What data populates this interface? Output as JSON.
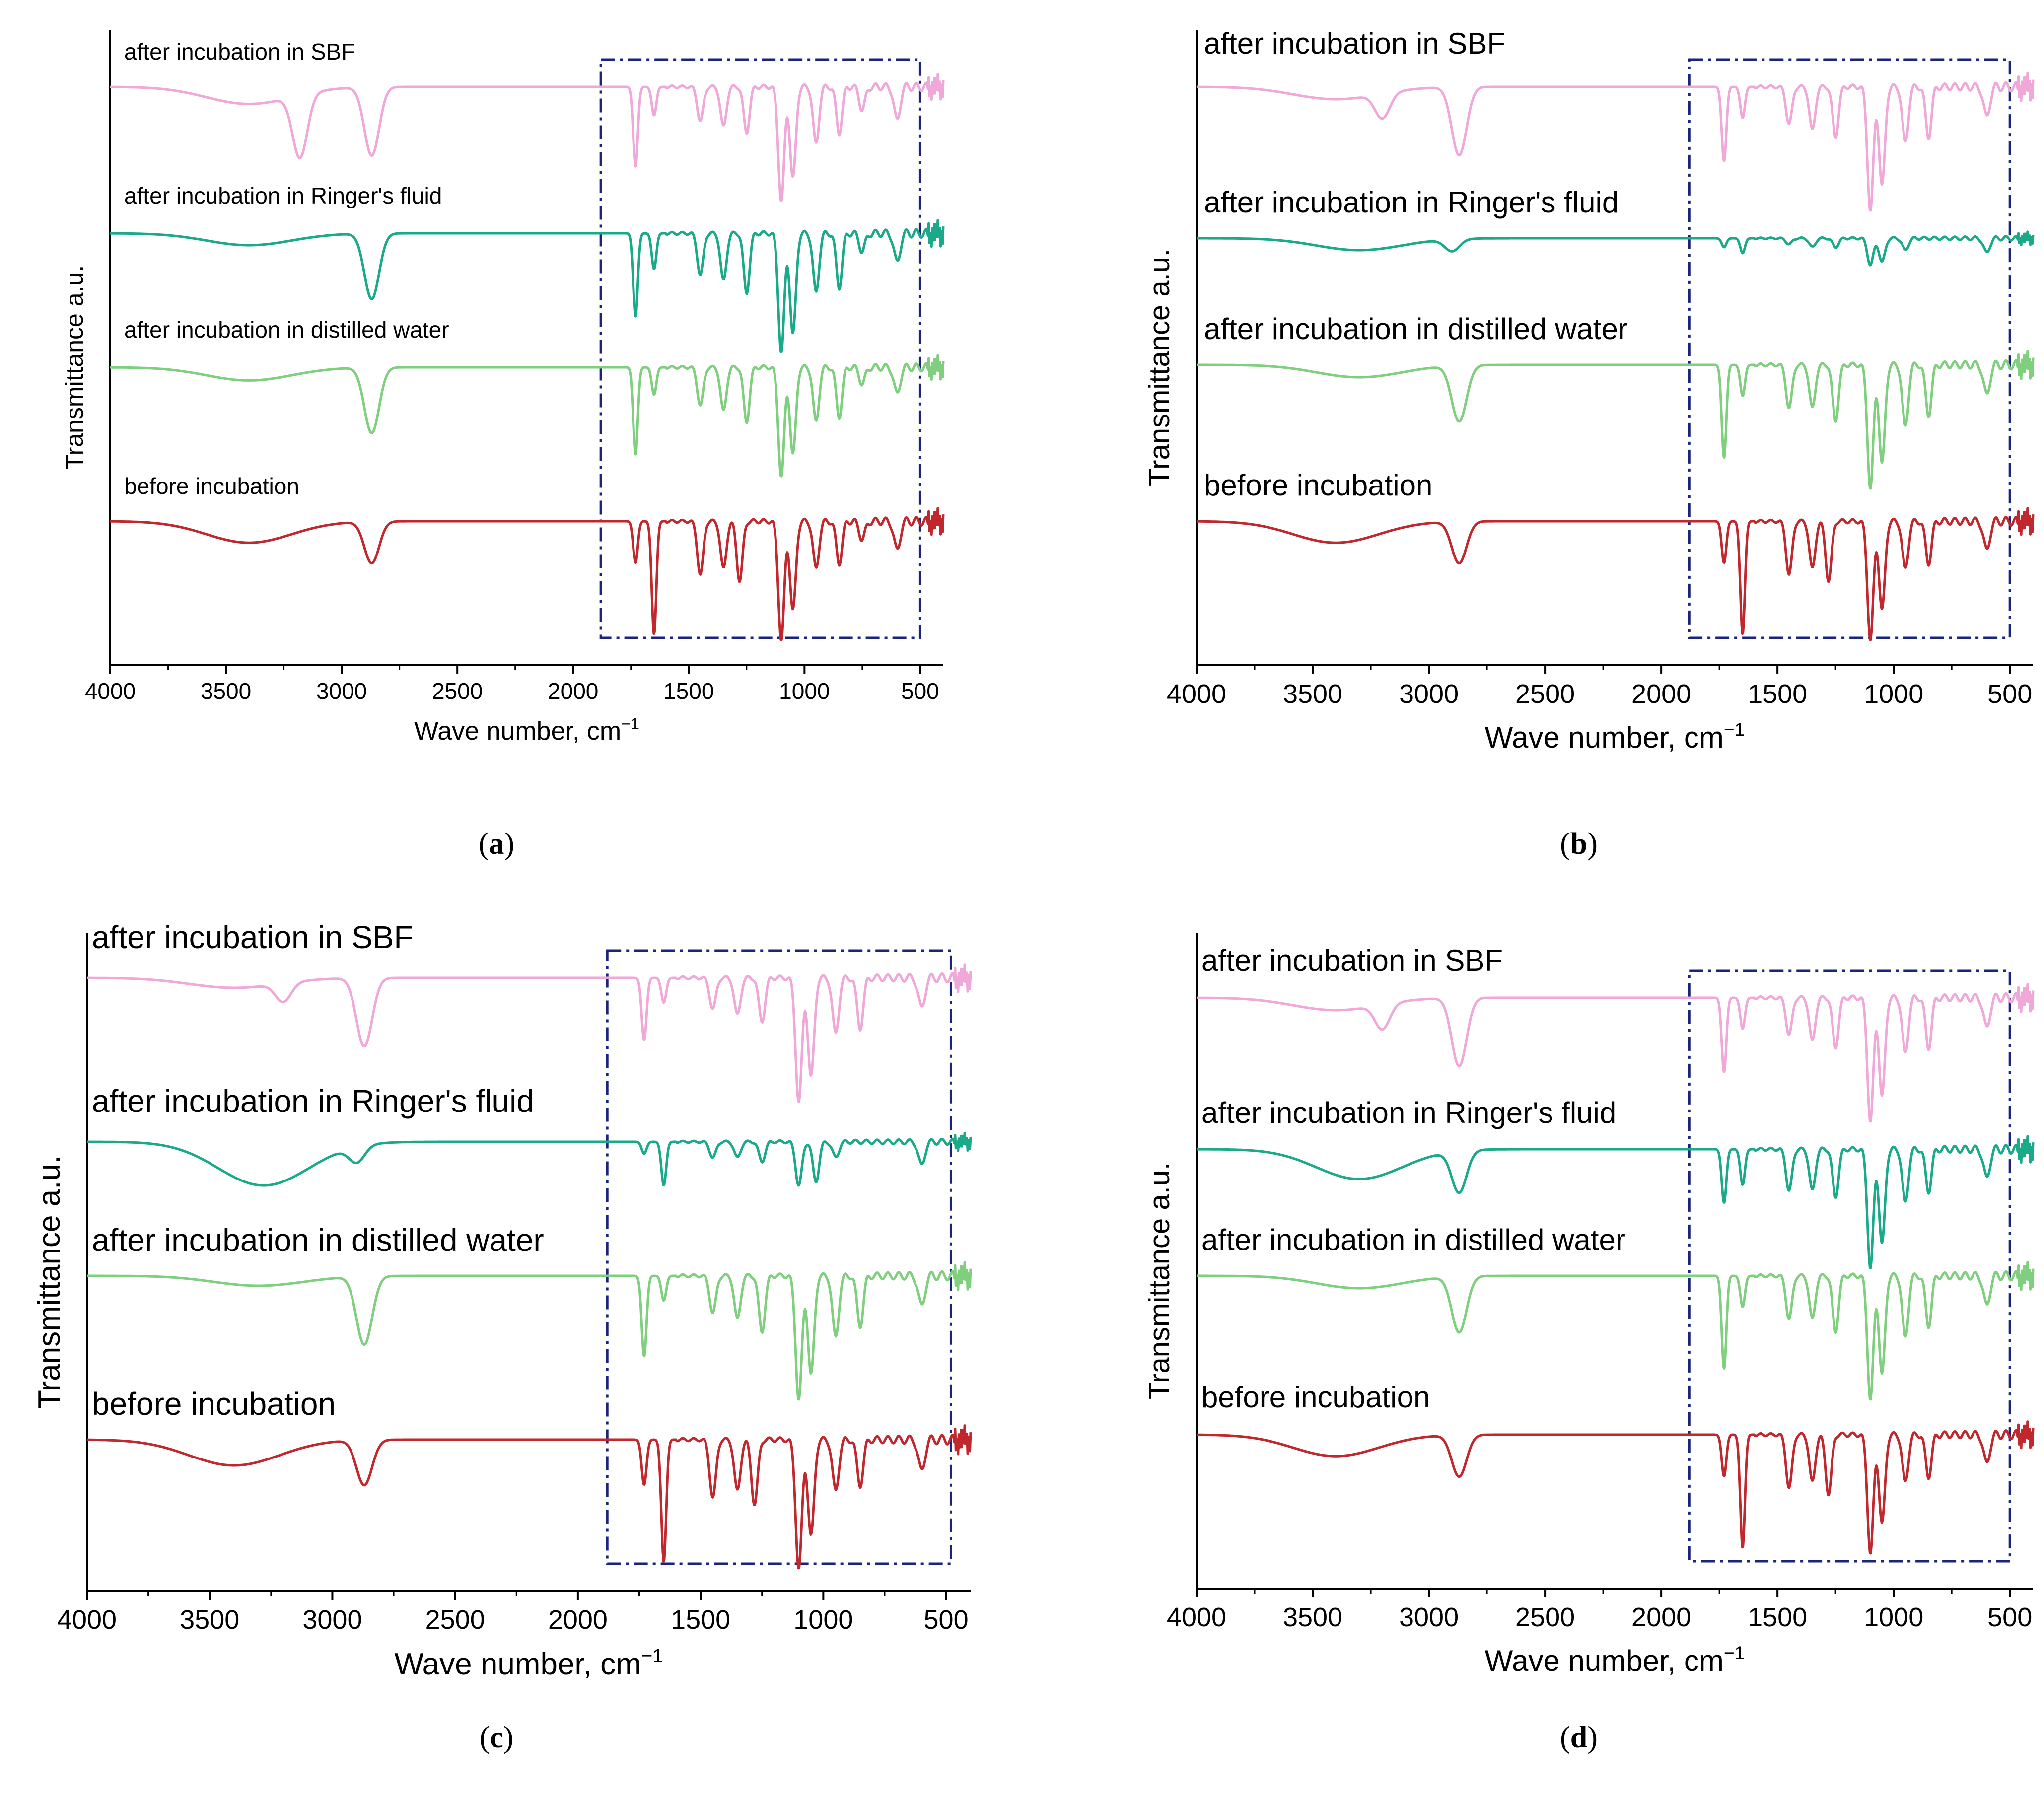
{
  "figure": {
    "panels_labels": [
      "a",
      "b",
      "c",
      "d"
    ]
  },
  "chart_data": [
    {
      "id": "a",
      "type": "line",
      "panel_label": "a",
      "xlabel": "Wave number, cm",
      "xlabel_superscript": "−1",
      "ylabel": "Transmittance a.u.",
      "xlim": [
        4000,
        400
      ],
      "x_ticks": [
        4000,
        3500,
        3000,
        2500,
        2000,
        1500,
        1000,
        500
      ],
      "x_tick_labels": [
        "4000",
        "3500",
        "3000",
        "2500",
        "2000",
        "1500",
        "1000",
        "500"
      ],
      "highlight_box": {
        "x_range": [
          1880,
          500
        ],
        "style": "dash-dot",
        "color": "#1a237e"
      },
      "series": [
        {
          "name": "after incubation in SBF",
          "color": "#f0a8d8",
          "peaks": [
            [
              3180,
              0.55
            ],
            [
              2870,
              0.6
            ],
            [
              1730,
              0.7
            ],
            [
              1650,
              0.25
            ],
            [
              1450,
              0.3
            ],
            [
              1350,
              0.35
            ],
            [
              1250,
              0.4
            ],
            [
              1100,
              1.0
            ],
            [
              1050,
              0.8
            ],
            [
              950,
              0.5
            ],
            [
              850,
              0.4
            ],
            [
              750,
              0.2
            ],
            [
              600,
              0.3
            ]
          ],
          "broad": [
            [
              3400,
              0.15
            ]
          ]
        },
        {
          "name": "after incubation in Ringer's fluid",
          "color": "#1aaa8a",
          "peaks": [
            [
              2870,
              0.55
            ],
            [
              1730,
              0.7
            ],
            [
              1650,
              0.3
            ],
            [
              1450,
              0.35
            ],
            [
              1350,
              0.4
            ],
            [
              1250,
              0.5
            ],
            [
              1100,
              1.0
            ],
            [
              1050,
              0.85
            ],
            [
              950,
              0.5
            ],
            [
              850,
              0.45
            ],
            [
              750,
              0.15
            ],
            [
              600,
              0.25
            ]
          ],
          "broad": [
            [
              3400,
              0.1
            ]
          ]
        },
        {
          "name": "after incubation in distilled water",
          "color": "#7fcf7f",
          "peaks": [
            [
              2870,
              0.6
            ],
            [
              1730,
              0.8
            ],
            [
              1650,
              0.25
            ],
            [
              1450,
              0.35
            ],
            [
              1350,
              0.4
            ],
            [
              1250,
              0.5
            ],
            [
              1100,
              1.0
            ],
            [
              1050,
              0.8
            ],
            [
              950,
              0.5
            ],
            [
              850,
              0.45
            ],
            [
              750,
              0.15
            ],
            [
              600,
              0.25
            ]
          ],
          "broad": [
            [
              3400,
              0.12
            ]
          ]
        },
        {
          "name": "before incubation",
          "color": "#c0282d",
          "peaks": [
            [
              2870,
              0.35
            ],
            [
              1730,
              0.35
            ],
            [
              1650,
              0.95
            ],
            [
              1450,
              0.45
            ],
            [
              1350,
              0.4
            ],
            [
              1280,
              0.5
            ],
            [
              1100,
              1.0
            ],
            [
              1050,
              0.75
            ],
            [
              950,
              0.4
            ],
            [
              850,
              0.35
            ],
            [
              750,
              0.15
            ],
            [
              600,
              0.25
            ]
          ],
          "broad": [
            [
              3400,
              0.18
            ]
          ]
        }
      ]
    },
    {
      "id": "b",
      "type": "line",
      "panel_label": "b",
      "xlabel": "Wave number, cm",
      "xlabel_superscript": "−1",
      "ylabel": "Transmittance a.u.",
      "xlim": [
        4000,
        400
      ],
      "x_ticks": [
        4000,
        3500,
        3000,
        2500,
        2000,
        1500,
        1000,
        500
      ],
      "x_tick_labels": [
        "4000",
        "3500",
        "3000",
        "2500",
        "2000",
        "1500",
        "1000",
        "500"
      ],
      "highlight_box": {
        "x_range": [
          1880,
          500
        ],
        "style": "dash-dot",
        "color": "#1a237e"
      },
      "series": [
        {
          "name": "after incubation in SBF",
          "color": "#f0a8d8",
          "peaks": [
            [
              3200,
              0.2
            ],
            [
              2870,
              0.55
            ],
            [
              1730,
              0.6
            ],
            [
              1650,
              0.25
            ],
            [
              1450,
              0.3
            ],
            [
              1350,
              0.35
            ],
            [
              1250,
              0.4
            ],
            [
              1100,
              1.0
            ],
            [
              1050,
              0.8
            ],
            [
              950,
              0.45
            ],
            [
              850,
              0.4
            ],
            [
              600,
              0.25
            ]
          ],
          "broad": [
            [
              3400,
              0.1
            ]
          ]
        },
        {
          "name": "after incubation in Ringer's fluid",
          "color": "#1aaa8a",
          "peaks": [
            [
              2900,
              0.2
            ],
            [
              1730,
              0.15
            ],
            [
              1650,
              0.25
            ],
            [
              1450,
              0.1
            ],
            [
              1350,
              0.15
            ],
            [
              1250,
              0.15
            ],
            [
              1100,
              0.45
            ],
            [
              1050,
              0.4
            ],
            [
              950,
              0.2
            ],
            [
              600,
              0.25
            ]
          ],
          "broad": [
            [
              3300,
              0.2
            ]
          ]
        },
        {
          "name": "after incubation in distilled water",
          "color": "#7fcf7f",
          "peaks": [
            [
              2870,
              0.45
            ],
            [
              1730,
              0.75
            ],
            [
              1650,
              0.25
            ],
            [
              1450,
              0.35
            ],
            [
              1350,
              0.35
            ],
            [
              1250,
              0.45
            ],
            [
              1100,
              1.0
            ],
            [
              1050,
              0.8
            ],
            [
              950,
              0.5
            ],
            [
              850,
              0.4
            ],
            [
              600,
              0.25
            ]
          ],
          "broad": [
            [
              3300,
              0.1
            ]
          ]
        },
        {
          "name": "before incubation",
          "color": "#c0282d",
          "peaks": [
            [
              2870,
              0.35
            ],
            [
              1730,
              0.35
            ],
            [
              1650,
              0.95
            ],
            [
              1450,
              0.45
            ],
            [
              1350,
              0.4
            ],
            [
              1280,
              0.5
            ],
            [
              1100,
              1.0
            ],
            [
              1050,
              0.75
            ],
            [
              950,
              0.4
            ],
            [
              850,
              0.35
            ],
            [
              600,
              0.25
            ]
          ],
          "broad": [
            [
              3400,
              0.18
            ]
          ]
        }
      ]
    },
    {
      "id": "c",
      "type": "line",
      "panel_label": "c",
      "xlabel": "Wave number, cm",
      "xlabel_superscript": "−1",
      "ylabel": "Transmittance a.u.",
      "xlim": [
        4000,
        400
      ],
      "x_ticks": [
        4000,
        3500,
        3000,
        2500,
        2000,
        1500,
        1000,
        500
      ],
      "x_tick_labels": [
        "4000",
        "3500",
        "3000",
        "2500",
        "2000",
        "1500",
        "1000",
        "500"
      ],
      "highlight_box": {
        "x_range": [
          1880,
          480
        ],
        "style": "dash-dot",
        "color": "#1a237e"
      },
      "series": [
        {
          "name": "after incubation in SBF",
          "color": "#f0a8d8",
          "peaks": [
            [
              3200,
              0.15
            ],
            [
              2870,
              0.55
            ],
            [
              1730,
              0.5
            ],
            [
              1650,
              0.2
            ],
            [
              1450,
              0.25
            ],
            [
              1350,
              0.3
            ],
            [
              1250,
              0.35
            ],
            [
              1100,
              1.0
            ],
            [
              1050,
              0.8
            ],
            [
              950,
              0.45
            ],
            [
              850,
              0.4
            ],
            [
              600,
              0.25
            ]
          ],
          "broad": [
            [
              3400,
              0.08
            ]
          ]
        },
        {
          "name": "after incubation in Ringer's fluid",
          "color": "#1aaa8a",
          "peaks": [
            [
              2900,
              0.2
            ],
            [
              1730,
              0.15
            ],
            [
              1650,
              0.55
            ],
            [
              1450,
              0.2
            ],
            [
              1350,
              0.2
            ],
            [
              1250,
              0.25
            ],
            [
              1100,
              0.55
            ],
            [
              1030,
              0.5
            ],
            [
              950,
              0.2
            ],
            [
              600,
              0.3
            ]
          ],
          "broad": [
            [
              3280,
              0.55
            ]
          ]
        },
        {
          "name": "after incubation in distilled water",
          "color": "#7fcf7f",
          "peaks": [
            [
              2870,
              0.55
            ],
            [
              1730,
              0.65
            ],
            [
              1650,
              0.2
            ],
            [
              1450,
              0.3
            ],
            [
              1350,
              0.35
            ],
            [
              1250,
              0.45
            ],
            [
              1100,
              1.0
            ],
            [
              1050,
              0.8
            ],
            [
              950,
              0.5
            ],
            [
              850,
              0.4
            ],
            [
              600,
              0.25
            ]
          ],
          "broad": [
            [
              3300,
              0.08
            ]
          ]
        },
        {
          "name": "before incubation",
          "color": "#c0282d",
          "peaks": [
            [
              2870,
              0.35
            ],
            [
              1730,
              0.35
            ],
            [
              1650,
              0.95
            ],
            [
              1450,
              0.45
            ],
            [
              1350,
              0.4
            ],
            [
              1280,
              0.5
            ],
            [
              1100,
              1.0
            ],
            [
              1050,
              0.75
            ],
            [
              950,
              0.4
            ],
            [
              850,
              0.35
            ],
            [
              600,
              0.25
            ]
          ],
          "broad": [
            [
              3400,
              0.2
            ]
          ]
        }
      ]
    },
    {
      "id": "d",
      "type": "line",
      "panel_label": "d",
      "xlabel": "Wave number, cm",
      "xlabel_superscript": "−1",
      "ylabel": "Transmittance a.u.",
      "xlim": [
        4000,
        400
      ],
      "x_ticks": [
        4000,
        3500,
        3000,
        2500,
        2000,
        1500,
        1000,
        500
      ],
      "x_tick_labels": [
        "4000",
        "3500",
        "3000",
        "2500",
        "2000",
        "1500",
        "1000",
        "500"
      ],
      "highlight_box": {
        "x_range": [
          1880,
          500
        ],
        "style": "dash-dot",
        "color": "#1a237e"
      },
      "series": [
        {
          "name": "after incubation in SBF",
          "color": "#f0a8d8",
          "peaks": [
            [
              3200,
              0.2
            ],
            [
              2870,
              0.55
            ],
            [
              1730,
              0.6
            ],
            [
              1650,
              0.25
            ],
            [
              1450,
              0.3
            ],
            [
              1350,
              0.35
            ],
            [
              1250,
              0.4
            ],
            [
              1100,
              1.0
            ],
            [
              1050,
              0.8
            ],
            [
              950,
              0.45
            ],
            [
              850,
              0.4
            ],
            [
              600,
              0.25
            ]
          ],
          "broad": [
            [
              3400,
              0.1
            ]
          ]
        },
        {
          "name": "after incubation in Ringer's fluid",
          "color": "#1aaa8a",
          "peaks": [
            [
              2870,
              0.35
            ],
            [
              1730,
              0.45
            ],
            [
              1650,
              0.3
            ],
            [
              1450,
              0.35
            ],
            [
              1350,
              0.35
            ],
            [
              1250,
              0.4
            ],
            [
              1100,
              1.0
            ],
            [
              1050,
              0.8
            ],
            [
              950,
              0.45
            ],
            [
              850,
              0.35
            ],
            [
              600,
              0.25
            ]
          ],
          "broad": [
            [
              3300,
              0.25
            ]
          ]
        },
        {
          "name": "after incubation in distilled water",
          "color": "#7fcf7f",
          "peaks": [
            [
              2870,
              0.45
            ],
            [
              1730,
              0.75
            ],
            [
              1650,
              0.25
            ],
            [
              1450,
              0.35
            ],
            [
              1350,
              0.35
            ],
            [
              1250,
              0.45
            ],
            [
              1100,
              1.0
            ],
            [
              1050,
              0.8
            ],
            [
              950,
              0.5
            ],
            [
              850,
              0.4
            ],
            [
              600,
              0.25
            ]
          ],
          "broad": [
            [
              3300,
              0.1
            ]
          ]
        },
        {
          "name": "before incubation",
          "color": "#c0282d",
          "peaks": [
            [
              2870,
              0.35
            ],
            [
              1730,
              0.35
            ],
            [
              1650,
              0.95
            ],
            [
              1450,
              0.45
            ],
            [
              1350,
              0.4
            ],
            [
              1280,
              0.5
            ],
            [
              1100,
              1.0
            ],
            [
              1050,
              0.75
            ],
            [
              950,
              0.4
            ],
            [
              850,
              0.35
            ],
            [
              600,
              0.25
            ]
          ],
          "broad": [
            [
              3400,
              0.18
            ]
          ]
        }
      ]
    }
  ]
}
